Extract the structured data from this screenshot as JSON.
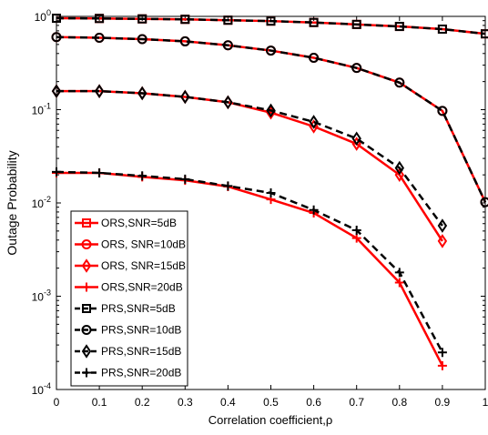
{
  "chart_data": {
    "type": "line",
    "log_y": true,
    "xlabel": "Correlation coefficient,ρ",
    "ylabel": "Outage Probability",
    "x": [
      0,
      0.1,
      0.2,
      0.3,
      0.4,
      0.5,
      0.6,
      0.7,
      0.8,
      0.9,
      1
    ],
    "xlim": [
      0,
      1
    ],
    "xticks": [
      0,
      0.1,
      0.2,
      0.3,
      0.4,
      0.5,
      0.6,
      0.7,
      0.8,
      0.9,
      1
    ],
    "ylim": [
      0.0001,
      1
    ],
    "yticks": [
      {
        "value": 0.0001,
        "label": "10",
        "exponent": "-4"
      },
      {
        "value": 0.001,
        "label": "10",
        "exponent": "-3"
      },
      {
        "value": 0.01,
        "label": "10",
        "exponent": "-2"
      },
      {
        "value": 0.1,
        "label": "10",
        "exponent": "-1"
      },
      {
        "value": 1,
        "label": "10",
        "exponent": "0"
      }
    ],
    "legend": "lower-left",
    "series": [
      {
        "name": "ORS,SNR=5dB",
        "color": "#ff0000",
        "marker": "square",
        "dashed": false,
        "values": [
          0.955,
          0.95,
          0.94,
          0.93,
          0.91,
          0.89,
          0.86,
          0.82,
          0.78,
          0.73,
          0.65
        ]
      },
      {
        "name": "ORS, SNR=10dB",
        "color": "#ff0000",
        "marker": "circle",
        "dashed": false,
        "values": [
          0.6,
          0.59,
          0.57,
          0.54,
          0.49,
          0.43,
          0.36,
          0.28,
          0.195,
          0.097,
          0.0102
        ]
      },
      {
        "name": "ORS, SNR=15dB",
        "color": "#ff0000",
        "marker": "diamond",
        "dashed": false,
        "values": [
          0.158,
          0.158,
          0.15,
          0.137,
          0.12,
          0.093,
          0.066,
          0.043,
          0.02,
          0.0039,
          null
        ]
      },
      {
        "name": "ORS,SNR=20dB",
        "color": "#ff0000",
        "marker": "plus",
        "dashed": false,
        "values": [
          0.021,
          0.021,
          0.019,
          0.0175,
          0.015,
          0.0109,
          0.0078,
          0.0042,
          0.0014,
          0.00018,
          null
        ]
      },
      {
        "name": "PRS,SNR=5dB",
        "color": "#000000",
        "marker": "square",
        "dashed": true,
        "values": [
          0.955,
          0.95,
          0.94,
          0.93,
          0.91,
          0.89,
          0.86,
          0.82,
          0.78,
          0.73,
          0.65
        ]
      },
      {
        "name": "PRS,SNR=10dB",
        "color": "#000000",
        "marker": "circle",
        "dashed": true,
        "values": [
          0.6,
          0.59,
          0.57,
          0.54,
          0.49,
          0.43,
          0.36,
          0.28,
          0.195,
          0.097,
          0.0102
        ]
      },
      {
        "name": "PRS,SNR=15dB",
        "color": "#000000",
        "marker": "diamond",
        "dashed": true,
        "values": [
          0.158,
          0.158,
          0.15,
          0.137,
          0.12,
          0.098,
          0.074,
          0.049,
          0.0237,
          0.0057,
          null
        ]
      },
      {
        "name": "PRS,SNR=20dB",
        "color": "#000000",
        "marker": "plus",
        "dashed": true,
        "values": [
          0.0215,
          0.021,
          0.0195,
          0.018,
          0.0152,
          0.0128,
          0.0084,
          0.0051,
          0.0018,
          0.00025,
          null
        ]
      }
    ]
  }
}
